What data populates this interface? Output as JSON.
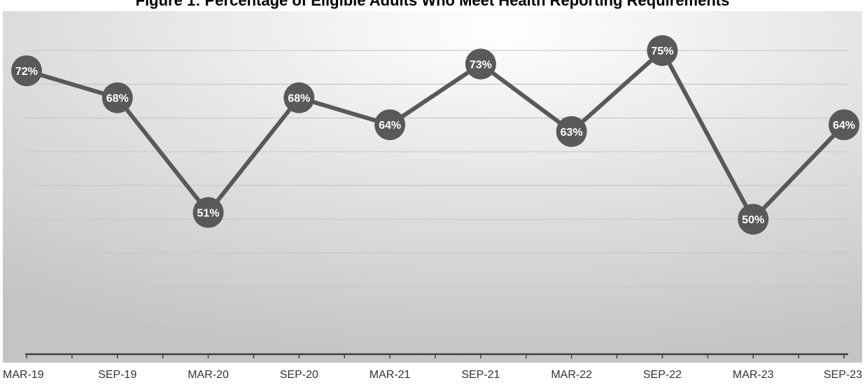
{
  "chart_data": {
    "type": "line",
    "title": "Figure 1: Percentage of Eligible Adults Who Meet Health Reporting Requirements",
    "xlabel": "",
    "ylabel": "",
    "categories": [
      "MAR-19",
      "SEP-19",
      "MAR-20",
      "SEP-20",
      "MAR-21",
      "SEP-21",
      "MAR-22",
      "SEP-22",
      "MAR-23",
      "SEP-23"
    ],
    "series": [
      {
        "values": [
          72,
          68,
          51,
          68,
          64,
          73,
          63,
          75,
          50,
          64
        ],
        "data_labels": [
          "72%",
          "68%",
          "51%",
          "68%",
          "64%",
          "73%",
          "63%",
          "75%",
          "50%",
          "64%"
        ]
      }
    ],
    "ylim": [
      30,
      80
    ],
    "y_gridlines": [
      35,
      40,
      45,
      50,
      55,
      60,
      65,
      70,
      75
    ],
    "grid": true,
    "legend": "none",
    "colors": {
      "line": "#595959",
      "marker": "#595959",
      "label_text": "#ffffff",
      "gridline": "#c8c8c8",
      "axis": "#404040",
      "background_center": "#ffffff",
      "background_edge": "#c4c4c4"
    }
  }
}
